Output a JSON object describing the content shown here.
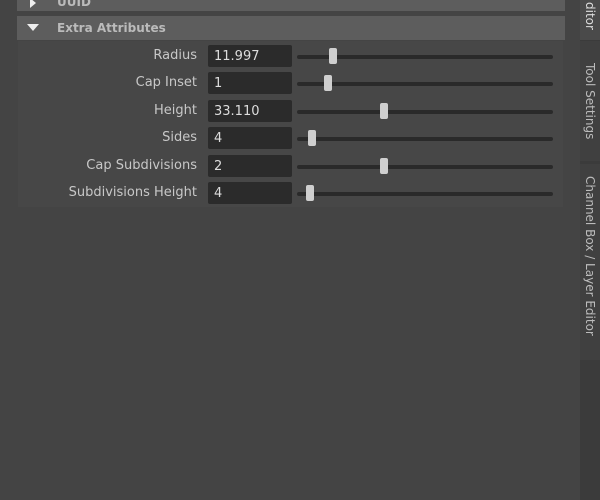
{
  "sections": [
    {
      "title": "UUID",
      "expanded": false
    },
    {
      "title": "Extra Attributes",
      "expanded": true
    }
  ],
  "attributes": [
    {
      "label": "Radius",
      "value": "11.997",
      "slider": 0.14
    },
    {
      "label": "Cap Inset",
      "value": "1",
      "slider": 0.12
    },
    {
      "label": "Height",
      "value": "33.110",
      "slider": 0.34
    },
    {
      "label": "Sides",
      "value": "4",
      "slider": 0.06
    },
    {
      "label": "Cap Subdivisions",
      "value": "2",
      "slider": 0.34
    },
    {
      "label": "Subdivisions Height",
      "value": "4",
      "slider": 0.05
    }
  ],
  "side_tabs": [
    {
      "label": "ditor",
      "active": true
    },
    {
      "label": "Tool Settings",
      "active": false
    },
    {
      "label": "Channel Box / Layer Editor",
      "active": false
    }
  ]
}
